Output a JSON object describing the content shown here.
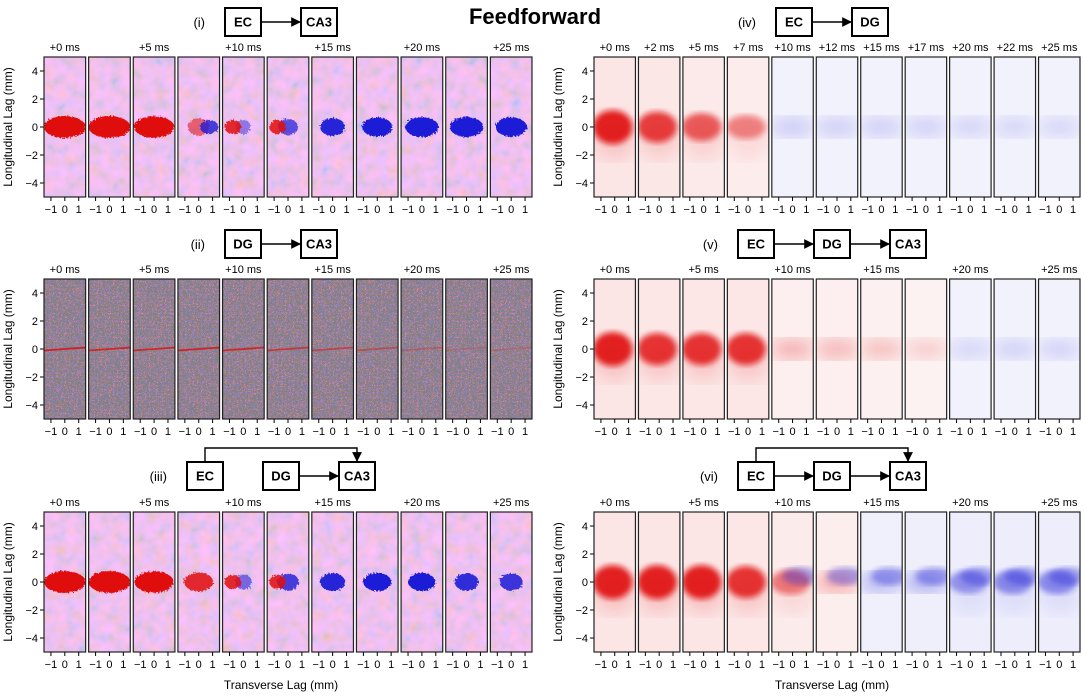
{
  "chart_data": {
    "type": "heatmap",
    "title": "Feedforward",
    "colormap": {
      "negative": "#1a1ad6",
      "zero": "#ffffff",
      "positive": "#e01010"
    },
    "xlabel": "Transverse Lag (mm)",
    "ylabel": "Longitudinal Lag (mm)",
    "x_ticks": [
      "−1",
      "0",
      "1"
    ],
    "y_ticks": [
      4,
      2,
      0,
      -2,
      -4
    ],
    "ylim": [
      -5,
      5
    ],
    "xlim": [
      -1.5,
      1.5
    ],
    "panels": [
      {
        "id": "i",
        "label": "(i)",
        "style": "noisy",
        "pathway": {
          "type": "chain",
          "nodes": [
            "EC",
            "CA3"
          ]
        },
        "time_labels": [
          "+0 ms",
          "",
          "+5 ms",
          "",
          "+10 ms",
          "",
          "+15 ms",
          "",
          "+20 ms",
          "",
          "+25 ms"
        ],
        "center_values": [
          1,
          1,
          0.95,
          0.2,
          -0.1,
          -0.35,
          -0.6,
          -0.85,
          -1,
          -1,
          -0.9
        ]
      },
      {
        "id": "ii",
        "label": "(ii)",
        "style": "line",
        "pathway": {
          "type": "chain",
          "nodes": [
            "DG",
            "CA3"
          ]
        },
        "time_labels": [
          "+0 ms",
          "",
          "+5 ms",
          "",
          "+10 ms",
          "",
          "+15 ms",
          "",
          "+20 ms",
          "",
          "+25 ms"
        ],
        "center_values": [
          0.9,
          0.8,
          0.8,
          0.85,
          0.8,
          0.65,
          0.55,
          0.45,
          0.3,
          0.15,
          0.05
        ]
      },
      {
        "id": "iii",
        "label": "(iii)",
        "style": "noisy",
        "pathway": {
          "type": "bypass",
          "nodes": [
            "EC",
            "DG",
            "CA3"
          ]
        },
        "time_labels": [
          "+0 ms",
          "",
          "+5 ms",
          "",
          "+10 ms",
          "",
          "+15 ms",
          "",
          "+20 ms",
          "",
          "+25 ms"
        ],
        "center_values": [
          1,
          1,
          0.9,
          0.5,
          -0.2,
          -0.45,
          -0.6,
          -0.75,
          -0.7,
          -0.55,
          -0.5
        ]
      },
      {
        "id": "iv",
        "label": "(iv)",
        "style": "smooth",
        "pathway": {
          "type": "chain",
          "nodes": [
            "EC",
            "DG"
          ]
        },
        "time_labels": [
          "+0 ms",
          "+2 ms",
          "+5 ms",
          "+7 ms",
          "+10 ms",
          "+12 ms",
          "+15 ms",
          "+17 ms",
          "+20 ms",
          "+22 ms",
          "+25 ms"
        ],
        "center_values": [
          1,
          0.85,
          0.7,
          0.5,
          -0.12,
          -0.1,
          -0.1,
          -0.08,
          -0.06,
          -0.05,
          -0.05
        ]
      },
      {
        "id": "v",
        "label": "(v)",
        "style": "smooth",
        "pathway": {
          "type": "chain",
          "nodes": [
            "EC",
            "DG",
            "CA3"
          ]
        },
        "time_labels": [
          "+0 ms",
          "",
          "+5 ms",
          "",
          "+10 ms",
          "",
          "+15 ms",
          "",
          "+20 ms",
          "",
          "+25 ms"
        ],
        "center_values": [
          1,
          0.9,
          0.9,
          0.9,
          0.3,
          0.25,
          0.2,
          0.1,
          -0.05,
          -0.08,
          -0.08
        ]
      },
      {
        "id": "vi",
        "label": "(vi)",
        "style": "smooth",
        "pathway": {
          "type": "chain_bypass",
          "nodes": [
            "EC",
            "DG",
            "CA3"
          ]
        },
        "time_labels": [
          "+0 ms",
          "",
          "+5 ms",
          "",
          "+10 ms",
          "",
          "+15 ms",
          "",
          "+20 ms",
          "",
          "+25 ms"
        ],
        "center_values": [
          1,
          1,
          1,
          0.9,
          0.55,
          0.35,
          -0.3,
          -0.35,
          -0.45,
          -0.5,
          -0.5
        ]
      }
    ]
  }
}
